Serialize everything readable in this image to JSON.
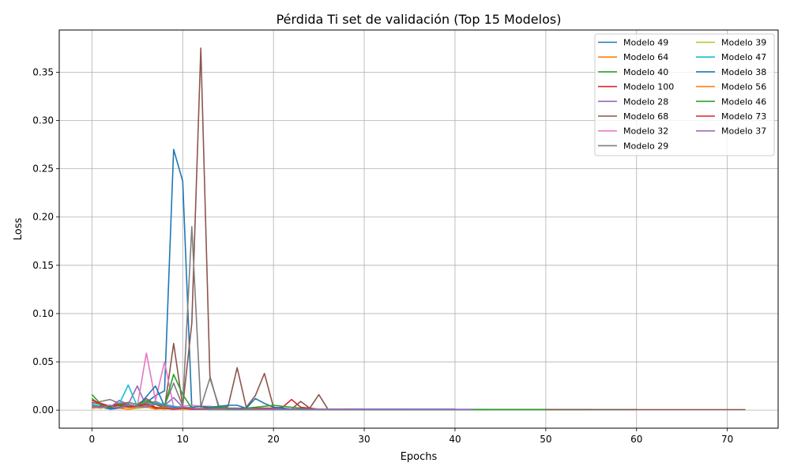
{
  "chart_data": {
    "type": "line",
    "title": "Pérdida Ti set de validación (Top 15 Modelos)",
    "xlabel": "Epochs",
    "ylabel": "Loss",
    "xlim": [
      -3.6,
      75.6
    ],
    "ylim": [
      -0.0187,
      0.3937
    ],
    "xticks": [
      0,
      10,
      20,
      30,
      40,
      50,
      60,
      70
    ],
    "yticks": [
      0.0,
      0.05,
      0.1,
      0.15,
      0.2,
      0.25,
      0.3,
      0.35
    ],
    "ytick_labels": [
      "0.00",
      "0.05",
      "0.10",
      "0.15",
      "0.20",
      "0.25",
      "0.30",
      "0.35"
    ],
    "grid": true,
    "legend_position": "top-right",
    "legend_columns": 2,
    "series": [
      {
        "name": "Modelo 49",
        "color": "#1f77b4",
        "x_end": 60,
        "points": [
          [
            0,
            0.004
          ],
          [
            1,
            0.003
          ],
          [
            2,
            0.001
          ],
          [
            3,
            0.002
          ],
          [
            4,
            0.004
          ],
          [
            5,
            0.003
          ],
          [
            6,
            0.008
          ],
          [
            7,
            0.015
          ],
          [
            8,
            0.02
          ],
          [
            9,
            0.27
          ],
          [
            10,
            0.237
          ],
          [
            11,
            0.002
          ],
          [
            12,
            0.001
          ],
          [
            13,
            0.001
          ],
          [
            14,
            0.001
          ]
        ],
        "tail": 0.0005
      },
      {
        "name": "Modelo 64",
        "color": "#ff7f0e",
        "x_end": 16,
        "points": [
          [
            0,
            0.003
          ],
          [
            1,
            0.002
          ],
          [
            2,
            0.005
          ],
          [
            3,
            0.002
          ],
          [
            4,
            0.001
          ],
          [
            5,
            0.002
          ],
          [
            6,
            0.003
          ],
          [
            7,
            0.001
          ],
          [
            8,
            0.002
          ],
          [
            9,
            0.001
          ],
          [
            10,
            0.001
          ],
          [
            11,
            0.002
          ],
          [
            12,
            0.001
          ],
          [
            13,
            0.002
          ],
          [
            14,
            0.001
          ],
          [
            15,
            0.001
          ],
          [
            16,
            0.001
          ]
        ],
        "tail": 0.001
      },
      {
        "name": "Modelo 40",
        "color": "#2ca02c",
        "x_end": 55,
        "points": [
          [
            0,
            0.016
          ],
          [
            1,
            0.006
          ],
          [
            2,
            0.002
          ],
          [
            3,
            0.003
          ],
          [
            4,
            0.006
          ],
          [
            5,
            0.004
          ],
          [
            6,
            0.005
          ],
          [
            7,
            0.002
          ],
          [
            8,
            0.003
          ],
          [
            9,
            0.001
          ],
          [
            10,
            0.002
          ],
          [
            11,
            0.002
          ],
          [
            12,
            0.001
          ]
        ],
        "tail": 0.0005
      },
      {
        "name": "Modelo 100",
        "color": "#d62728",
        "x_end": 28,
        "points": [
          [
            0,
            0.008
          ],
          [
            1,
            0.006
          ],
          [
            2,
            0.004
          ],
          [
            3,
            0.007
          ],
          [
            4,
            0.005
          ],
          [
            5,
            0.004
          ],
          [
            6,
            0.008
          ],
          [
            7,
            0.003
          ],
          [
            8,
            0.002
          ],
          [
            9,
            0.001
          ],
          [
            10,
            0.002
          ],
          [
            11,
            0.001
          ],
          [
            12,
            0.002
          ],
          [
            13,
            0.003
          ],
          [
            14,
            0.002
          ],
          [
            20,
            0.002
          ],
          [
            21,
            0.003
          ],
          [
            22,
            0.011
          ],
          [
            23,
            0.003
          ],
          [
            24,
            0.002
          ],
          [
            25,
            0.001
          ]
        ],
        "tail": 0.0005
      },
      {
        "name": "Modelo 28",
        "color": "#9467bd",
        "x_end": 35,
        "points": [
          [
            0,
            0.005
          ],
          [
            1,
            0.004
          ],
          [
            2,
            0.003
          ],
          [
            3,
            0.01
          ],
          [
            4,
            0.006
          ],
          [
            5,
            0.025
          ],
          [
            6,
            0.004
          ],
          [
            7,
            0.006
          ],
          [
            8,
            0.005
          ],
          [
            9,
            0.013
          ],
          [
            10,
            0.003
          ],
          [
            11,
            0.002
          ],
          [
            12,
            0.001
          ]
        ],
        "tail": 0.0008
      },
      {
        "name": "Modelo 68",
        "color": "#8c564b",
        "x_end": 72,
        "points": [
          [
            0,
            0.006
          ],
          [
            1,
            0.004
          ],
          [
            2,
            0.003
          ],
          [
            3,
            0.005
          ],
          [
            4,
            0.008
          ],
          [
            5,
            0.006
          ],
          [
            6,
            0.012
          ],
          [
            7,
            0.006
          ],
          [
            8,
            0.002
          ],
          [
            9,
            0.069
          ],
          [
            10,
            0.004
          ],
          [
            11,
            0.09
          ],
          [
            12,
            0.375
          ],
          [
            13,
            0.035
          ],
          [
            14,
            0.002
          ],
          [
            15,
            0.004
          ],
          [
            16,
            0.044
          ],
          [
            17,
            0.003
          ],
          [
            18,
            0.015
          ],
          [
            19,
            0.038
          ],
          [
            20,
            0.003
          ],
          [
            21,
            0.002
          ],
          [
            22,
            0.001
          ],
          [
            23,
            0.009
          ],
          [
            24,
            0.002
          ],
          [
            25,
            0.016
          ],
          [
            26,
            0.001
          ]
        ],
        "tail": 0.0005
      },
      {
        "name": "Modelo 32",
        "color": "#e377c2",
        "x_end": 30,
        "points": [
          [
            0,
            0.003
          ],
          [
            1,
            0.004
          ],
          [
            2,
            0.002
          ],
          [
            3,
            0.005
          ],
          [
            4,
            0.003
          ],
          [
            5,
            0.004
          ],
          [
            6,
            0.059
          ],
          [
            7,
            0.01
          ],
          [
            8,
            0.05
          ],
          [
            9,
            0.003
          ],
          [
            10,
            0.004
          ],
          [
            11,
            0.005
          ],
          [
            12,
            0.004
          ],
          [
            13,
            0.004
          ],
          [
            14,
            0.003
          ],
          [
            15,
            0.002
          ]
        ],
        "tail": 0.001
      },
      {
        "name": "Modelo 29",
        "color": "#7f7f7f",
        "x_end": 40,
        "points": [
          [
            0,
            0.007
          ],
          [
            1,
            0.009
          ],
          [
            2,
            0.011
          ],
          [
            3,
            0.007
          ],
          [
            4,
            0.008
          ],
          [
            5,
            0.006
          ],
          [
            6,
            0.007
          ],
          [
            7,
            0.009
          ],
          [
            8,
            0.005
          ],
          [
            9,
            0.028
          ],
          [
            10,
            0.004
          ],
          [
            11,
            0.19
          ],
          [
            12,
            0.003
          ],
          [
            13,
            0.033
          ],
          [
            14,
            0.004
          ],
          [
            15,
            0.002
          ],
          [
            16,
            0.002
          ],
          [
            17,
            0.001
          ]
        ],
        "tail": 0.001
      },
      {
        "name": "Modelo 39",
        "color": "#bcbd22",
        "x_end": 28,
        "points": [
          [
            0,
            0.002
          ],
          [
            1,
            0.003
          ],
          [
            2,
            0.002
          ],
          [
            3,
            0.004
          ],
          [
            4,
            0.003
          ],
          [
            5,
            0.002
          ],
          [
            6,
            0.003
          ],
          [
            7,
            0.002
          ],
          [
            8,
            0.001
          ],
          [
            9,
            0.002
          ],
          [
            10,
            0.001
          ]
        ],
        "tail": 0.001
      },
      {
        "name": "Modelo 47",
        "color": "#17becf",
        "x_end": 40,
        "points": [
          [
            0,
            0.006
          ],
          [
            1,
            0.004
          ],
          [
            2,
            0.003
          ],
          [
            3,
            0.006
          ],
          [
            4,
            0.026
          ],
          [
            5,
            0.004
          ],
          [
            6,
            0.005
          ],
          [
            7,
            0.008
          ],
          [
            8,
            0.006
          ],
          [
            9,
            0.004
          ],
          [
            10,
            0.003
          ],
          [
            11,
            0.002
          ]
        ],
        "tail": 0.0008
      },
      {
        "name": "Modelo 38",
        "color": "#1f77b4",
        "x_end": 44,
        "points": [
          [
            0,
            0.003
          ],
          [
            1,
            0.004
          ],
          [
            2,
            0.002
          ],
          [
            3,
            0.003
          ],
          [
            4,
            0.005
          ],
          [
            5,
            0.003
          ],
          [
            6,
            0.014
          ],
          [
            7,
            0.025
          ],
          [
            8,
            0.004
          ],
          [
            9,
            0.003
          ],
          [
            10,
            0.002
          ],
          [
            11,
            0.003
          ],
          [
            12,
            0.004
          ],
          [
            13,
            0.003
          ],
          [
            14,
            0.004
          ],
          [
            15,
            0.005
          ],
          [
            16,
            0.005
          ],
          [
            17,
            0.002
          ],
          [
            18,
            0.012
          ],
          [
            19,
            0.007
          ],
          [
            20,
            0.003
          ],
          [
            21,
            0.002
          ],
          [
            22,
            0.001
          ]
        ],
        "tail": 0.0006
      },
      {
        "name": "Modelo 56",
        "color": "#ff7f0e",
        "x_end": 18,
        "points": [
          [
            0,
            0.002
          ],
          [
            1,
            0.003
          ],
          [
            2,
            0.004
          ],
          [
            3,
            0.002
          ],
          [
            4,
            0.005
          ],
          [
            5,
            0.003
          ],
          [
            6,
            0.004
          ],
          [
            7,
            0.002
          ],
          [
            8,
            0.003
          ],
          [
            9,
            0.001
          ],
          [
            10,
            0.002
          ],
          [
            11,
            0.001
          ],
          [
            12,
            0.002
          ],
          [
            13,
            0.001
          ],
          [
            14,
            0.001
          ]
        ],
        "tail": 0.001
      },
      {
        "name": "Modelo 46",
        "color": "#2ca02c",
        "x_end": 50,
        "points": [
          [
            0,
            0.012
          ],
          [
            1,
            0.005
          ],
          [
            2,
            0.003
          ],
          [
            3,
            0.006
          ],
          [
            4,
            0.004
          ],
          [
            5,
            0.005
          ],
          [
            6,
            0.01
          ],
          [
            7,
            0.006
          ],
          [
            8,
            0.004
          ],
          [
            9,
            0.037
          ],
          [
            10,
            0.016
          ],
          [
            11,
            0.002
          ],
          [
            12,
            0.001
          ],
          [
            13,
            0.002
          ],
          [
            14,
            0.003
          ],
          [
            15,
            0.002
          ],
          [
            16,
            0.001
          ],
          [
            17,
            0.002
          ],
          [
            18,
            0.003
          ],
          [
            19,
            0.004
          ],
          [
            20,
            0.005
          ],
          [
            21,
            0.004
          ],
          [
            22,
            0.003
          ],
          [
            23,
            0.002
          ],
          [
            24,
            0.001
          ]
        ],
        "tail": 0.0006
      },
      {
        "name": "Modelo 73",
        "color": "#d62728",
        "x_end": 30,
        "points": [
          [
            0,
            0.01
          ],
          [
            1,
            0.007
          ],
          [
            2,
            0.004
          ],
          [
            3,
            0.005
          ],
          [
            4,
            0.003
          ],
          [
            5,
            0.004
          ],
          [
            6,
            0.006
          ],
          [
            7,
            0.002
          ],
          [
            8,
            0.002
          ],
          [
            9,
            0.001
          ],
          [
            10,
            0.002
          ],
          [
            11,
            0.001
          ]
        ],
        "tail": 0.0008
      },
      {
        "name": "Modelo 37",
        "color": "#9467bd",
        "x_end": 42,
        "points": [
          [
            0,
            0.004
          ],
          [
            1,
            0.003
          ],
          [
            2,
            0.005
          ],
          [
            3,
            0.002
          ],
          [
            4,
            0.006
          ],
          [
            5,
            0.004
          ],
          [
            6,
            0.003
          ],
          [
            7,
            0.007
          ],
          [
            8,
            0.005
          ],
          [
            9,
            0.002
          ],
          [
            10,
            0.003
          ],
          [
            11,
            0.002
          ],
          [
            12,
            0.001
          ]
        ],
        "tail": 0.0008
      }
    ]
  }
}
